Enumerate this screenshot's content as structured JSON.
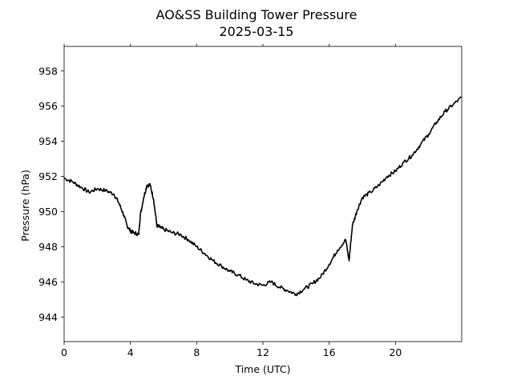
{
  "chart_data": {
    "type": "line",
    "title": "AO&SS Building Tower Pressure",
    "subtitle": "2025-03-15",
    "xlabel": "Time (UTC)",
    "ylabel": "Pressure (hPa)",
    "xlim": [
      0,
      24
    ],
    "ylim": [
      942.6,
      959.4
    ],
    "x_ticks": [
      0,
      4,
      8,
      12,
      16,
      20
    ],
    "y_ticks": [
      944,
      946,
      948,
      950,
      952,
      954,
      956,
      958
    ],
    "grid": false,
    "legend": "none",
    "line_color": "#000000",
    "series": [
      {
        "x": [
          0,
          0.5,
          1.0,
          1.5,
          2.0,
          2.5,
          3.0,
          3.3,
          3.6,
          3.8,
          4.0,
          4.2,
          4.5,
          4.6,
          4.8,
          5.0,
          5.2,
          5.4,
          5.6,
          5.8,
          6.0,
          6.5,
          7.0,
          7.5,
          8.0,
          8.5,
          9.0,
          9.5,
          10.0,
          10.5,
          11.0,
          11.5,
          12.0,
          12.5,
          13.0,
          13.5,
          14.0,
          14.5,
          15.0,
          15.5,
          16.0,
          16.5,
          17.0,
          17.2,
          17.4,
          17.7,
          18.0,
          18.5,
          19.0,
          19.5,
          20.0,
          20.5,
          21.0,
          21.5,
          22.0,
          22.5,
          23.0,
          23.5,
          24.0
        ],
        "y": [
          951.9,
          951.7,
          951.4,
          951.1,
          951.3,
          951.2,
          951.0,
          950.5,
          949.8,
          949.2,
          948.9,
          948.8,
          948.7,
          949.8,
          950.8,
          951.5,
          951.5,
          950.7,
          949.2,
          949.1,
          949.0,
          948.8,
          948.7,
          948.4,
          948.0,
          947.6,
          947.2,
          946.9,
          946.6,
          946.4,
          946.1,
          945.9,
          945.8,
          946.0,
          945.7,
          945.5,
          945.3,
          945.6,
          945.9,
          946.3,
          947.0,
          947.8,
          948.4,
          947.2,
          949.2,
          950.1,
          950.8,
          951.1,
          951.5,
          952.0,
          952.3,
          952.8,
          953.2,
          953.8,
          954.4,
          955.1,
          955.7,
          956.1,
          956.5
        ]
      }
    ]
  }
}
